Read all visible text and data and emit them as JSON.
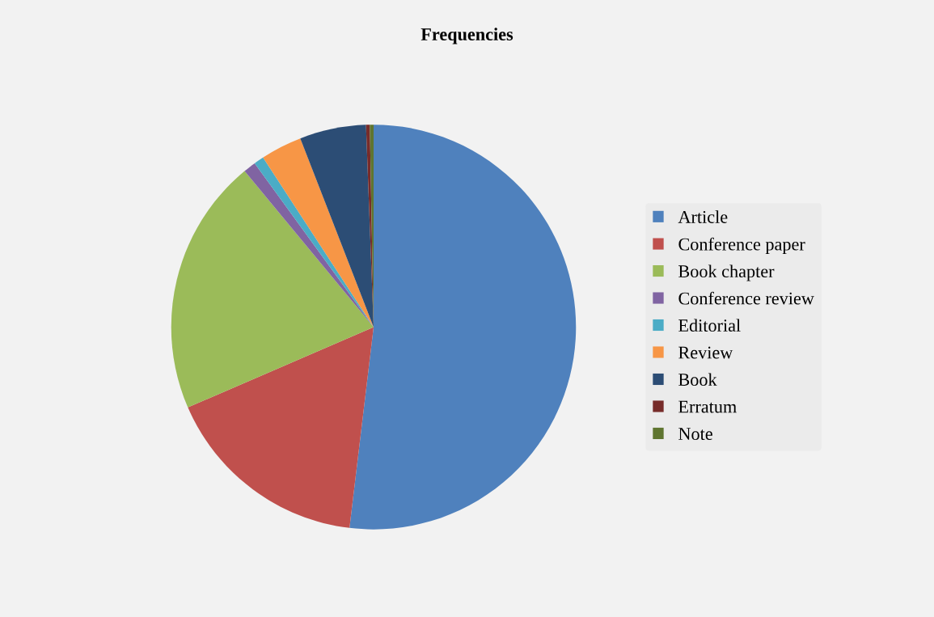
{
  "chart_data": {
    "type": "pie",
    "title": "Frequencies",
    "categories": [
      "Article",
      "Conference paper",
      "Book chapter",
      "Conference review",
      "Editorial",
      "Review",
      "Book",
      "Erratum",
      "Note"
    ],
    "values": [
      51.9,
      16.6,
      20.5,
      1.0,
      0.8,
      3.3,
      5.3,
      0.3,
      0.3
    ],
    "colors": [
      "#4f81bd",
      "#c0504d",
      "#9bbb59",
      "#8064a2",
      "#4bacc6",
      "#f79646",
      "#2c4d75",
      "#772c2a",
      "#5f7530"
    ],
    "legend": "right"
  }
}
